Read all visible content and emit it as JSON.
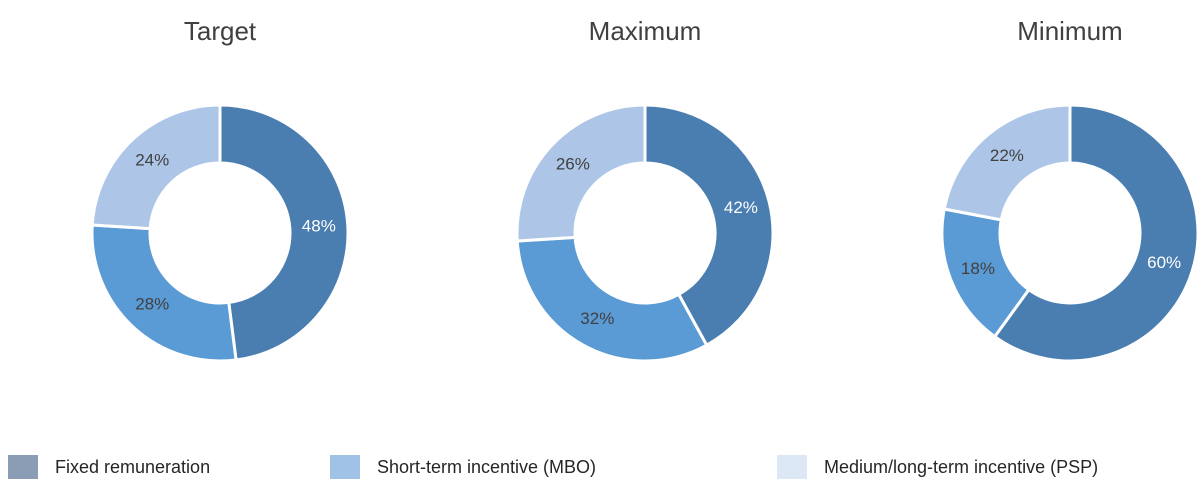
{
  "chart_data": [
    {
      "type": "doughnut",
      "title": "Target",
      "values": [
        48,
        28,
        24
      ],
      "value_labels": [
        "48%",
        "28%",
        "24%"
      ],
      "colors": [
        "#4a7eb1",
        "#5b9bd5",
        "#adc6e7"
      ]
    },
    {
      "type": "doughnut",
      "title": "Maximum",
      "values": [
        42,
        32,
        26
      ],
      "value_labels": [
        "42%",
        "32%",
        "26%"
      ],
      "colors": [
        "#4a7eb1",
        "#5b9bd5",
        "#adc6e7"
      ]
    },
    {
      "type": "doughnut",
      "title": "Minimum",
      "values": [
        60,
        18,
        22
      ],
      "value_labels": [
        "60%",
        "18%",
        "22%"
      ],
      "colors": [
        "#4a7eb1",
        "#5b9bd5",
        "#adc6e7"
      ]
    }
  ],
  "legend": {
    "labels": [
      "Fixed remuneration",
      "Short-term incentive (MBO)",
      "Medium/long-term incentive (PSP)"
    ],
    "colors": [
      "#8b9cb5",
      "#a0c2e6",
      "#dce8f5"
    ]
  }
}
